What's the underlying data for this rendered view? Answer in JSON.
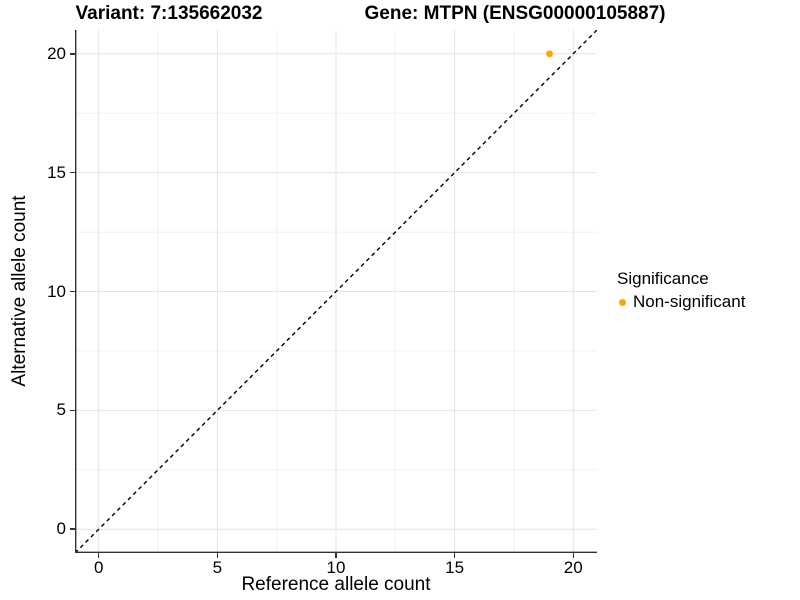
{
  "chart_data": {
    "type": "scatter",
    "title_variant": "Variant: 7:135662032",
    "title_gene": "Gene: MTPN (ENSG00000105887)",
    "xlabel": "Reference allele count",
    "ylabel": "Alternative allele count",
    "xlim": [
      -1,
      21
    ],
    "ylim": [
      -1,
      21
    ],
    "x_ticks": [
      0,
      5,
      10,
      15,
      20
    ],
    "y_ticks": [
      0,
      5,
      10,
      15,
      20
    ],
    "x_minor_ticks": [
      2.5,
      7.5,
      12.5,
      17.5
    ],
    "y_minor_ticks": [
      2.5,
      7.5,
      12.5,
      17.5
    ],
    "grid": true,
    "points": [
      {
        "x": 19,
        "y": 20,
        "series": "Non-significant"
      }
    ],
    "identity_line": {
      "style": "dashed",
      "color": "#000000"
    },
    "legend": {
      "title": "Significance",
      "position": "right",
      "entries": [
        {
          "label": "Non-significant",
          "color": "#FFA500"
        }
      ]
    },
    "colors": {
      "point": "#FFA500",
      "grid_major": "#E4E4E4",
      "grid_minor": "#F1F1F1",
      "axis_line": "#333333",
      "tick_mark": "#333333",
      "text": "#000000",
      "background": "#FFFFFF"
    }
  }
}
